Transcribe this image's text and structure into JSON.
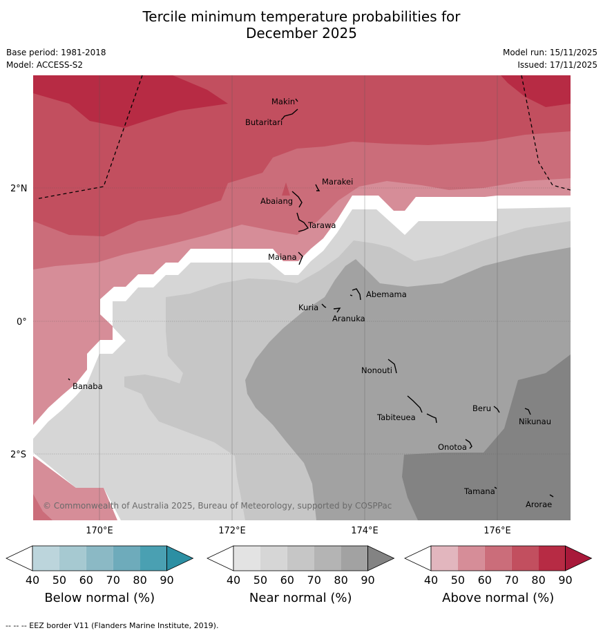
{
  "title": {
    "line1": "Tercile minimum temperature probabilities for",
    "line2": "December 2025"
  },
  "meta": {
    "base_period": "Base period: 1981-2018",
    "model": "Model: ACCESS-S2",
    "model_run": "Model run: 15/11/2025",
    "issued": "Issued: 17/11/2025"
  },
  "map": {
    "lat_labels": [
      "2°N",
      "0°",
      "2°S"
    ],
    "lon_labels": [
      "170°E",
      "172°E",
      "174°E",
      "176°E"
    ],
    "copyright": "© Commonwealth of Australia 2025, Bureau of Meteorology, supported by COSPPac",
    "places": [
      "Makin",
      "Butaritari",
      "Marakei",
      "Abaiang",
      "Tarawa",
      "Maiana",
      "Abemama",
      "Kuria",
      "Aranuka",
      "Banaba",
      "Nonouti",
      "Beru",
      "Nikunau",
      "Tabiteuea",
      "Onotoa",
      "Tamana",
      "Arorae"
    ]
  },
  "colorbars": [
    {
      "label": "Below normal (%)",
      "ticks": [
        "40",
        "50",
        "60",
        "70",
        "80",
        "90"
      ],
      "colors": [
        "#ffffff",
        "#bcd5dc",
        "#a6c9d1",
        "#8bb9c5",
        "#6eabbb",
        "#4aa0b2",
        "#2c8fa3"
      ]
    },
    {
      "label": "Near normal (%)",
      "ticks": [
        "40",
        "50",
        "60",
        "70",
        "80",
        "90"
      ],
      "colors": [
        "#ffffff",
        "#e3e3e3",
        "#d6d6d6",
        "#c6c6c6",
        "#b4b4b4",
        "#a2a2a2",
        "#838383"
      ]
    },
    {
      "label": "Above normal (%)",
      "ticks": [
        "40",
        "50",
        "60",
        "70",
        "80",
        "90"
      ],
      "colors": [
        "#ffffff",
        "#e2b6be",
        "#d68d98",
        "#cb6d7a",
        "#c24f5f",
        "#b72b44",
        "#a8193a"
      ]
    }
  ],
  "footer": "--  --  -- EEZ border V11 (Flanders Marine Institute, 2019)."
}
